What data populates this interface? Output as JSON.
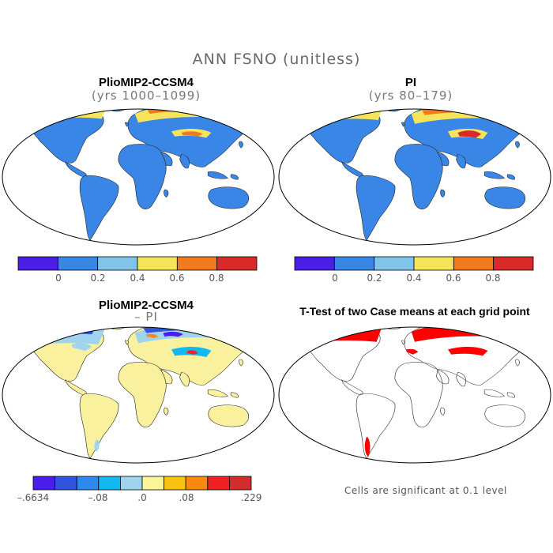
{
  "figure": {
    "title": "ANN FSNO (unitless)"
  },
  "panels": [
    {
      "id": "case1",
      "title": "PlioMIP2-CCSM4",
      "subtitle": "(yrs 1000–1099)"
    },
    {
      "id": "case2",
      "title": "PI",
      "subtitle": "(yrs 80–179)"
    },
    {
      "id": "diff",
      "title": "PlioMIP2-CCSM4",
      "subtitle": "– PI"
    },
    {
      "id": "ttest",
      "title": "T-Test of two Case means at each grid point",
      "subtitle": ""
    }
  ],
  "colorbars": {
    "main": {
      "colors": [
        "#4b1ee6",
        "#3a86e6",
        "#80c4ea",
        "#f6e55a",
        "#f07a1e",
        "#d92a2a"
      ],
      "ticks": [
        "0",
        "0.2",
        "0.4",
        "0.6",
        "0.8"
      ]
    },
    "diff": {
      "colors": [
        "#4a1eea",
        "#2f55dd",
        "#2f88ee",
        "#14b8f0",
        "#9fd3ee",
        "#fbf59a",
        "#f8c211",
        "#f88a12",
        "#ee2222",
        "#d22d2d"
      ],
      "ticks": [
        "–.6634",
        "–.08",
        ".0",
        ".08",
        ".229"
      ]
    }
  },
  "colors": {
    "land": "#3a86e6",
    "land_diff": "#f9f19e",
    "significant": "#ff0000",
    "arctic_snow_high": "#d92a2a",
    "arctic_snow_mid": "#f07a1e",
    "arctic_snow_low": "#f6e55a"
  },
  "footnote": "Cells are significant at 0.1 level"
}
